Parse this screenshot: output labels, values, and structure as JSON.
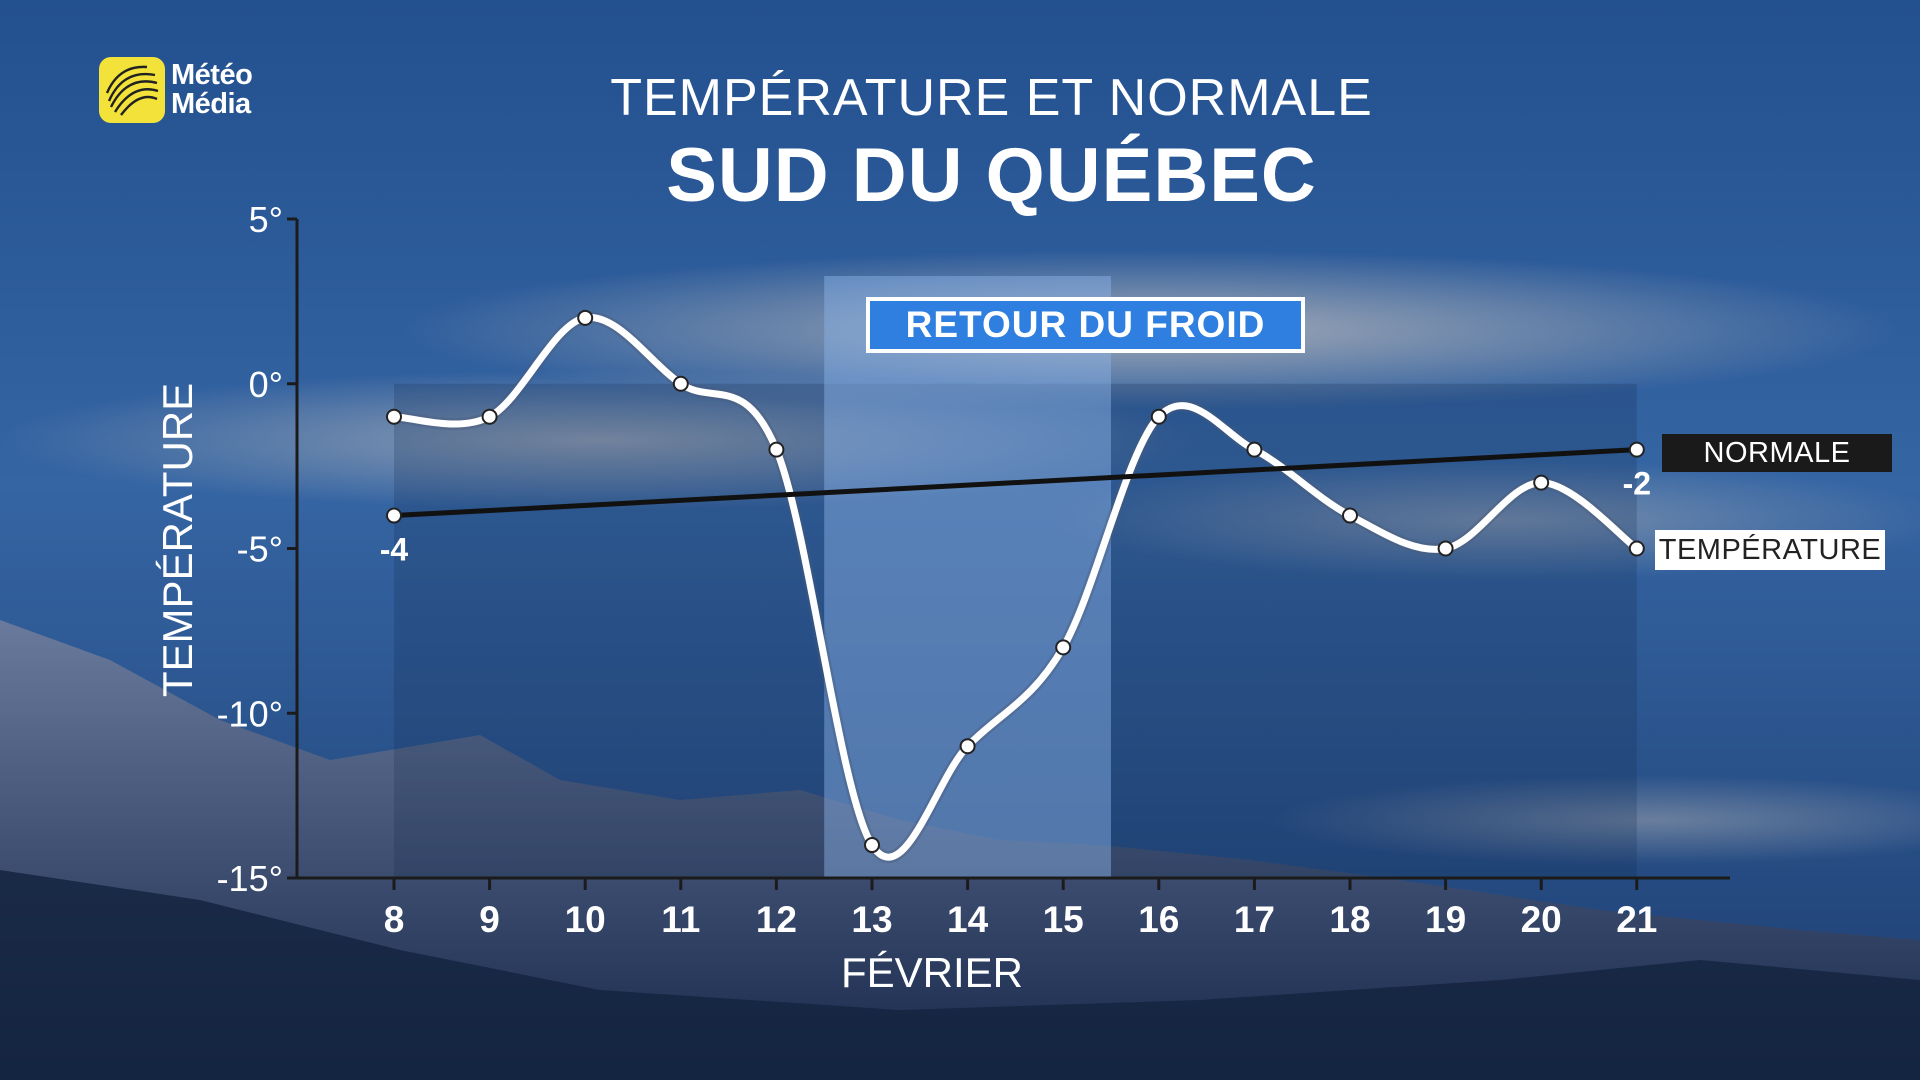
{
  "brand": {
    "logo_line1": "Météo",
    "logo_line2": "Média",
    "logo_color": "#f2e23a"
  },
  "header": {
    "title": "TEMPÉRATURE ET NORMALE",
    "subtitle": "SUD DU QUÉBEC"
  },
  "callout": {
    "label": "RETOUR DU FROID",
    "from_day": 12.5,
    "to_day": 15.5
  },
  "legend": {
    "normal_label": "NORMALE",
    "temperature_label": "TEMPÉRATURE"
  },
  "chart_data": {
    "type": "line",
    "xlabel": "FÉVRIER",
    "ylabel": "TEMPÉRATURE",
    "x": [
      8,
      9,
      10,
      11,
      12,
      13,
      14,
      15,
      16,
      17,
      18,
      19,
      20,
      21
    ],
    "ylim": [
      -15,
      5
    ],
    "yticks": [
      5,
      0,
      -5,
      -10,
      -15
    ],
    "ytick_labels": [
      "5°",
      "0°",
      "-5°",
      "-10°",
      "-15°"
    ],
    "series": [
      {
        "name": "TEMPÉRATURE",
        "values": [
          -1,
          -1,
          2,
          0,
          -2,
          -14,
          -11,
          -8,
          -1,
          -2,
          -4,
          -5,
          -3,
          -5
        ],
        "color": "#ffffff"
      },
      {
        "name": "NORMALE",
        "x": [
          8,
          21
        ],
        "values": [
          -4,
          -2
        ],
        "color": "#111111",
        "end_labels": [
          "-4",
          "-2"
        ]
      }
    ],
    "grid": false,
    "legend_position": "right"
  }
}
